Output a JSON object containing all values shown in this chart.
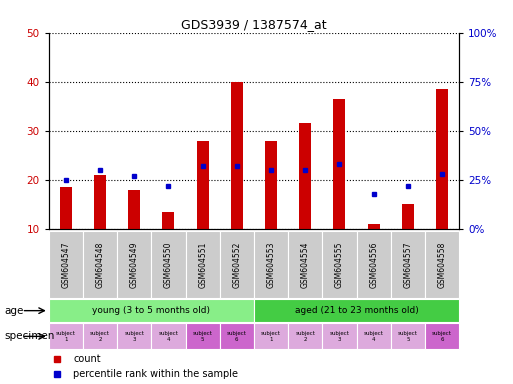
{
  "title": "GDS3939 / 1387574_at",
  "samples": [
    "GSM604547",
    "GSM604548",
    "GSM604549",
    "GSM604550",
    "GSM604551",
    "GSM604552",
    "GSM604553",
    "GSM604554",
    "GSM604555",
    "GSM604556",
    "GSM604557",
    "GSM604558"
  ],
  "counts": [
    18.5,
    21.0,
    18.0,
    13.5,
    28.0,
    40.0,
    28.0,
    31.5,
    36.5,
    11.0,
    15.0,
    38.5
  ],
  "percentile_ranks_pct": [
    25,
    30,
    27,
    22,
    32,
    32,
    30,
    30,
    33,
    18,
    22,
    28
  ],
  "ylim_left": [
    10,
    50
  ],
  "ylim_right": [
    0,
    100
  ],
  "yticks_left": [
    10,
    20,
    30,
    40,
    50
  ],
  "yticks_right": [
    0,
    25,
    50,
    75,
    100
  ],
  "bar_color": "#cc0000",
  "marker_color": "#0000cc",
  "age_groups": [
    {
      "label": "young (3 to 5 months old)",
      "start": 0,
      "end": 6,
      "color": "#88ee88"
    },
    {
      "label": "aged (21 to 23 months old)",
      "start": 6,
      "end": 12,
      "color": "#44cc44"
    }
  ],
  "specimen_colors": [
    "#ddaadd",
    "#ddaadd",
    "#ddaadd",
    "#ddaadd",
    "#cc66cc",
    "#cc66cc",
    "#ddaadd",
    "#ddaadd",
    "#ddaadd",
    "#ddaadd",
    "#ddaadd",
    "#cc66cc"
  ],
  "specimen_labels": [
    "subject\n1",
    "subject\n2",
    "subject\n3",
    "subject\n4",
    "subject\n5",
    "subject\n6",
    "subject\n1",
    "subject\n2",
    "subject\n3",
    "subject\n4",
    "subject\n5",
    "subject\n6"
  ],
  "tick_label_color_left": "#cc0000",
  "tick_label_color_right": "#0000cc",
  "grid_color": "#000000",
  "xticklabel_bg": "#cccccc"
}
